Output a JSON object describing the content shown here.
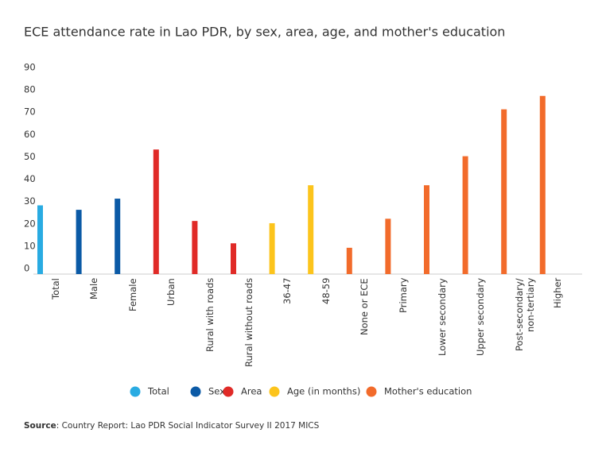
{
  "chart_data": {
    "type": "bar",
    "title": "ECE attendance rate in Lao PDR, by sex, area, age, and mother's education",
    "categories": [
      "Total",
      "Male",
      "Female",
      "Urban",
      "Rural with roads",
      "Rural without roads",
      "36-47",
      "48-59",
      "None or ECE",
      "Primary",
      "Lower secondary",
      "Upper secondary",
      "Post-secondary/ non-tertiary",
      "Higher"
    ],
    "series": [
      {
        "name": "Total",
        "color": "#29abe2",
        "values": [
          29,
          null,
          null,
          null,
          null,
          null,
          null,
          null,
          null,
          null,
          null,
          null,
          null,
          null
        ]
      },
      {
        "name": "Sex",
        "color": "#0b5aa6",
        "values": [
          null,
          27,
          32,
          null,
          null,
          null,
          null,
          null,
          null,
          null,
          null,
          null,
          null,
          null
        ]
      },
      {
        "name": "Area",
        "color": "#e02a27",
        "values": [
          null,
          null,
          null,
          54,
          22,
          12,
          null,
          null,
          null,
          null,
          null,
          null,
          null,
          null
        ]
      },
      {
        "name": "Age (in months)",
        "color": "#fcc41c",
        "values": [
          null,
          null,
          null,
          null,
          null,
          null,
          21,
          38,
          null,
          null,
          null,
          null,
          null,
          null
        ]
      },
      {
        "name": "Mother's education",
        "color": "#f26b2b",
        "values": [
          null,
          null,
          null,
          null,
          null,
          null,
          null,
          null,
          10,
          23,
          38,
          51,
          72,
          78
        ]
      }
    ],
    "ylim": [
      0,
      90
    ],
    "yticks": [
      0,
      10,
      20,
      30,
      40,
      50,
      60,
      70,
      80,
      90
    ],
    "grid": false,
    "legend": "bottom",
    "source_label": "Source",
    "source": ": Country Report: Lao PDR Social Indicator Survey II 2017 MICS"
  }
}
